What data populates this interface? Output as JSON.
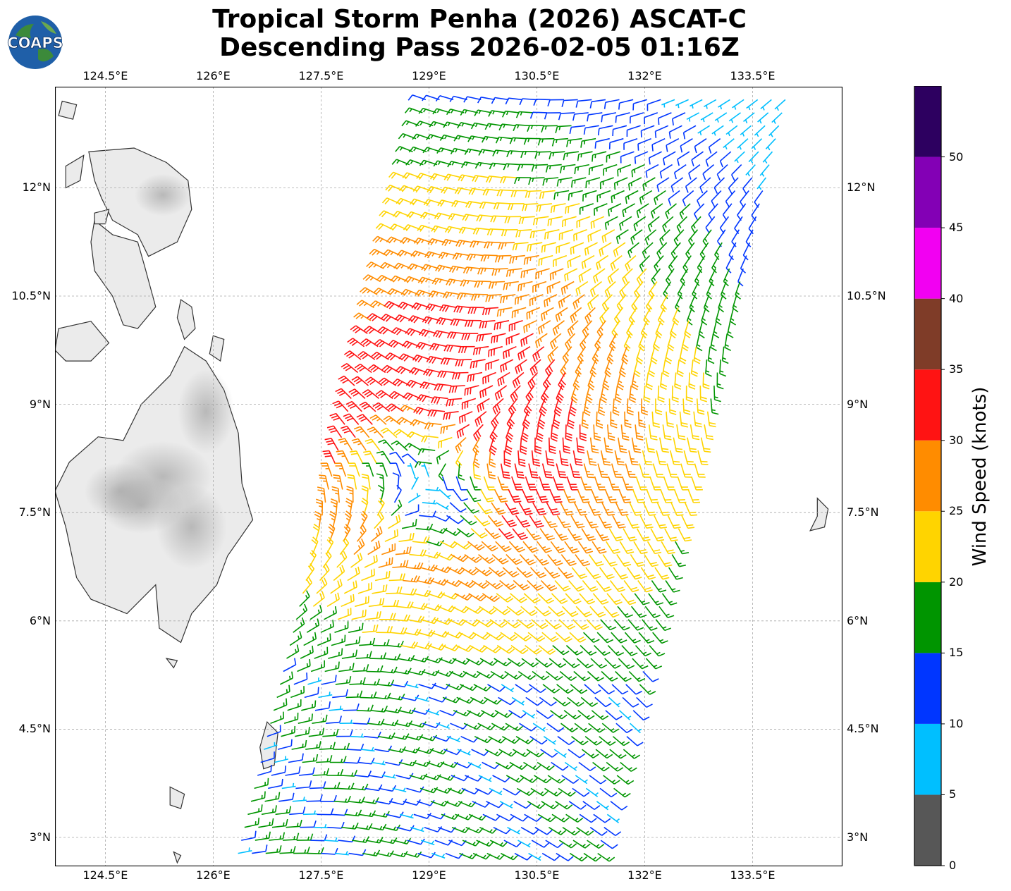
{
  "title": {
    "line1": "Tropical Storm Penha (2026) ASCAT-C",
    "line2": "Descending Pass 2026-02-05 01:16Z"
  },
  "logo": {
    "text": "COAPS",
    "ocean_color": "#1f5fa8",
    "land_color": "#3c8a3a"
  },
  "map": {
    "lon_ticks": [
      "124.5°E",
      "126°E",
      "127.5°E",
      "129°E",
      "130.5°E",
      "132°E",
      "133.5°E"
    ],
    "lat_ticks": [
      "12°N",
      "10.5°N",
      "9°N",
      "7.5°N",
      "6°N",
      "4.5°N",
      "3°N"
    ],
    "lon_values": [
      124.5,
      126,
      127.5,
      129,
      130.5,
      132,
      133.5
    ],
    "lat_values": [
      12,
      10.5,
      9,
      7.5,
      6,
      4.5,
      3
    ],
    "lon_range": [
      123.8,
      134.75
    ],
    "lat_range": [
      2.6,
      13.4
    ],
    "gridlines": true,
    "land_color": "#ebebeb",
    "coast_color": "#333333"
  },
  "wind_field": {
    "storm_center": {
      "lon": 129.0,
      "lat": 8.0
    },
    "swath_corners": [
      [
        129.0,
        13.4
      ],
      [
        134.0,
        13.4
      ],
      [
        131.3,
        2.6
      ],
      [
        126.3,
        2.6
      ]
    ],
    "units": "knots"
  },
  "colorbar": {
    "label": "Wind Speed (knots)",
    "ticks": [
      "0",
      "5",
      "10",
      "15",
      "20",
      "25",
      "30",
      "35",
      "40",
      "45",
      "50"
    ],
    "bins": [
      {
        "min": 0,
        "max": 5,
        "color": "#575757"
      },
      {
        "min": 5,
        "max": 10,
        "color": "#00bfff"
      },
      {
        "min": 10,
        "max": 15,
        "color": "#0036ff"
      },
      {
        "min": 15,
        "max": 20,
        "color": "#009500"
      },
      {
        "min": 20,
        "max": 25,
        "color": "#ffd400"
      },
      {
        "min": 25,
        "max": 30,
        "color": "#ff8c00"
      },
      {
        "min": 30,
        "max": 35,
        "color": "#ff1313"
      },
      {
        "min": 35,
        "max": 40,
        "color": "#7f3c28"
      },
      {
        "min": 40,
        "max": 45,
        "color": "#f200f2"
      },
      {
        "min": 45,
        "max": 50,
        "color": "#8300b5"
      },
      {
        "min": 50,
        "max": 55,
        "color": "#2d0060"
      }
    ]
  }
}
